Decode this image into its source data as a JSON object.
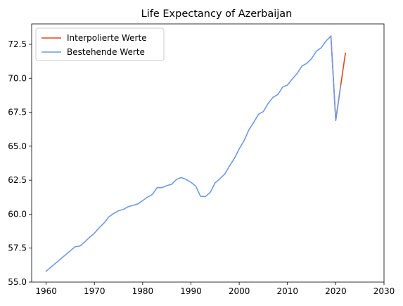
{
  "chart_data": {
    "type": "line",
    "title": "Life Expectancy of Azerbaijan",
    "xlabel": "",
    "ylabel": "",
    "xlim": [
      1957,
      2030
    ],
    "ylim": [
      55.0,
      74.0
    ],
    "xticks": [
      "1960",
      "1970",
      "1980",
      "1990",
      "2000",
      "2010",
      "2020",
      "2030"
    ],
    "yticks": [
      "55.0",
      "57.5",
      "60.0",
      "62.5",
      "65.0",
      "67.5",
      "70.0",
      "72.5"
    ],
    "grid": false,
    "legend_position": "top-left",
    "series": [
      {
        "name": "Interpolierte Werte",
        "color": "#e8461b",
        "x": [
          2019,
          2020,
          2021,
          2022
        ],
        "y": [
          73.1,
          66.9,
          69.4,
          71.85
        ]
      },
      {
        "name": "Bestehende Werte",
        "color": "#6f9ae3",
        "x": [
          1960,
          1961,
          1962,
          1963,
          1964,
          1965,
          1966,
          1967,
          1968,
          1969,
          1970,
          1971,
          1972,
          1973,
          1974,
          1975,
          1976,
          1977,
          1978,
          1979,
          1980,
          1981,
          1982,
          1983,
          1984,
          1985,
          1986,
          1987,
          1988,
          1989,
          1990,
          1991,
          1992,
          1993,
          1994,
          1995,
          1996,
          1997,
          1998,
          1999,
          2000,
          2001,
          2002,
          2003,
          2004,
          2005,
          2006,
          2007,
          2008,
          2009,
          2010,
          2011,
          2012,
          2013,
          2014,
          2015,
          2016,
          2017,
          2018,
          2019,
          2020,
          2021
        ],
        "y": [
          55.8,
          56.1,
          56.4,
          56.7,
          57.0,
          57.3,
          57.6,
          57.65,
          57.95,
          58.3,
          58.6,
          59.0,
          59.35,
          59.8,
          60.05,
          60.25,
          60.35,
          60.55,
          60.65,
          60.75,
          61.0,
          61.25,
          61.45,
          61.95,
          61.95,
          62.1,
          62.2,
          62.55,
          62.7,
          62.55,
          62.35,
          62.05,
          61.3,
          61.3,
          61.6,
          62.3,
          62.6,
          62.95,
          63.55,
          64.1,
          64.8,
          65.4,
          66.2,
          66.75,
          67.35,
          67.55,
          68.15,
          68.6,
          68.8,
          69.35,
          69.5,
          69.95,
          70.35,
          70.9,
          71.1,
          71.45,
          72.0,
          72.25,
          72.75,
          73.1,
          66.9,
          69.4
        ]
      }
    ]
  }
}
